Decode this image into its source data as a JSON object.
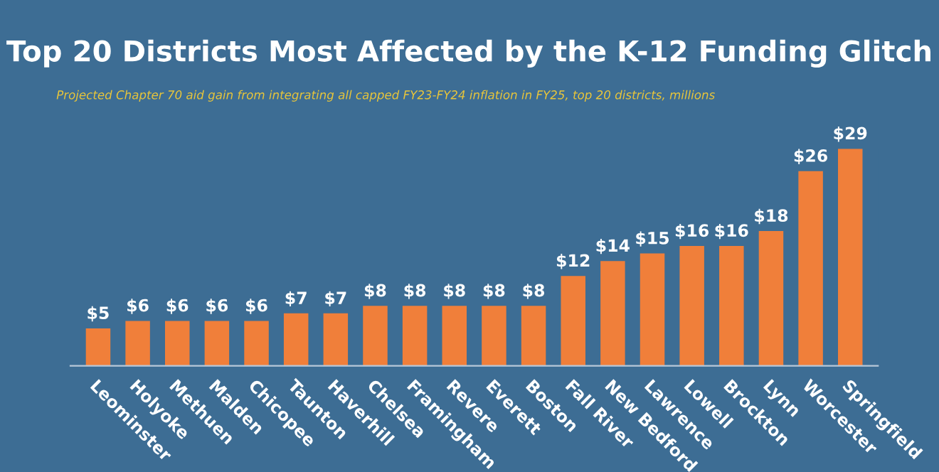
{
  "chart_data": {
    "type": "bar",
    "title": "Top 20 Districts Most Affected by the K-12 Funding Glitch",
    "subtitle": "Projected Chapter 70 aid gain from integrating all capped FY23-FY24 inflation in FY25, top 20 districts, millions",
    "categories": [
      "Leominster",
      "Holyoke",
      "Methuen",
      "Malden",
      "Chicopee",
      "Taunton",
      "Haverhill",
      "Chelsea",
      "Framingham",
      "Revere",
      "Everett",
      "Boston",
      "Fall River",
      "New Bedford",
      "Lawrence",
      "Lowell",
      "Brockton",
      "Lynn",
      "Worcester",
      "Springfield"
    ],
    "values": [
      5,
      6,
      6,
      6,
      6,
      7,
      7,
      8,
      8,
      8,
      8,
      8,
      12,
      14,
      15,
      16,
      16,
      18,
      26,
      29
    ],
    "value_labels": [
      "$5",
      "$6",
      "$6",
      "$6",
      "$6",
      "$7",
      "$7",
      "$8",
      "$8",
      "$8",
      "$8",
      "$8",
      "$12",
      "$14",
      "$15",
      "$16",
      "$16",
      "$18",
      "$26",
      "$29"
    ],
    "color": "#f07f3a",
    "grid": false,
    "legend": false
  }
}
